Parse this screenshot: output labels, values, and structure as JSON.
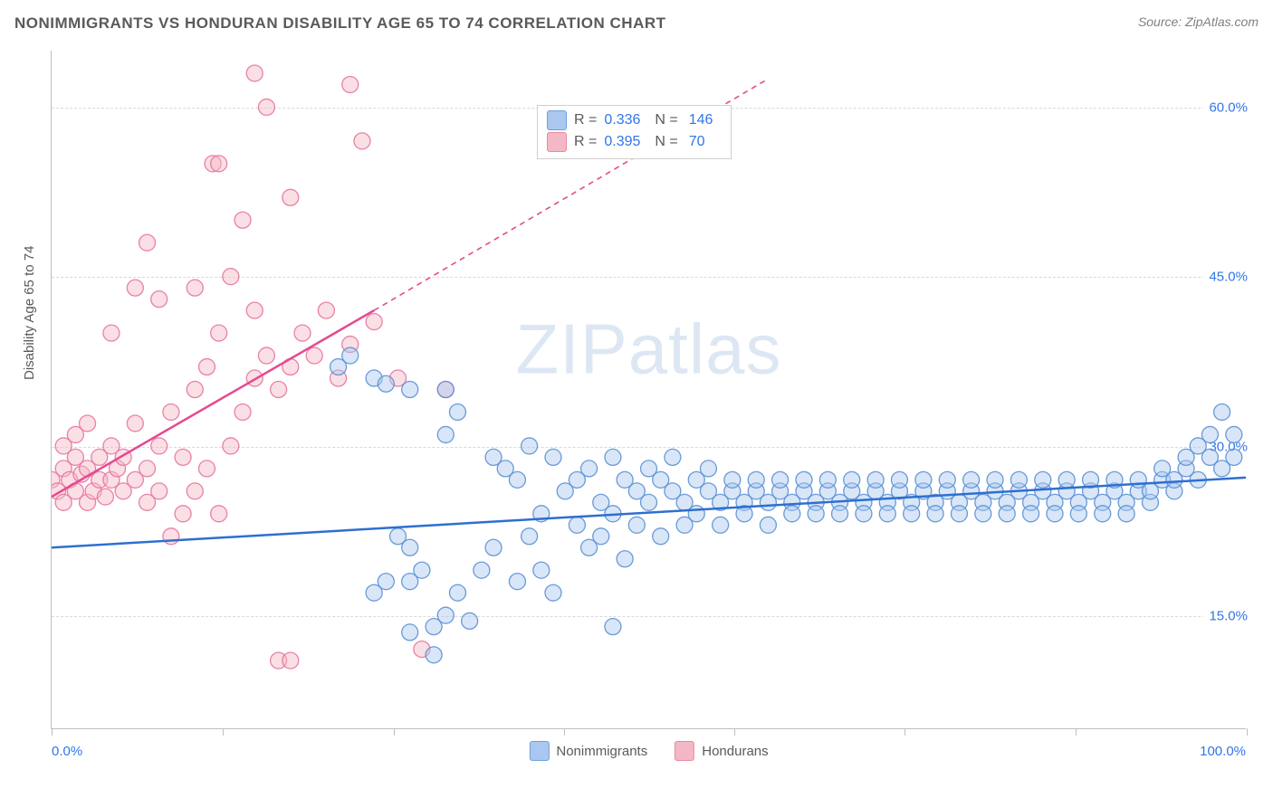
{
  "title": "NONIMMIGRANTS VS HONDURAN DISABILITY AGE 65 TO 74 CORRELATION CHART",
  "source": "Source: ZipAtlas.com",
  "y_axis_label": "Disability Age 65 to 74",
  "watermark": "ZIPatlas",
  "chart": {
    "type": "scatter",
    "background_color": "#ffffff",
    "grid_color": "#d9d9d9",
    "axis_color": "#bfbfbf",
    "xlim": [
      0,
      100
    ],
    "ylim": [
      5,
      65
    ],
    "x_tick_positions": [
      0,
      14.3,
      28.6,
      42.9,
      57.1,
      71.4,
      85.7,
      100
    ],
    "x_min_label": "0.0%",
    "x_max_label": "100.0%",
    "y_ticks": [
      {
        "value": 15,
        "label": "15.0%"
      },
      {
        "value": 30,
        "label": "30.0%"
      },
      {
        "value": 45,
        "label": "45.0%"
      },
      {
        "value": 60,
        "label": "60.0%"
      }
    ],
    "marker_radius": 9,
    "marker_opacity": 0.45,
    "trend_line_width": 2.5
  },
  "legend_top": {
    "rows": [
      {
        "swatch_fill": "#a9c7ef",
        "swatch_border": "#6fa0dc",
        "r_label": "R =",
        "r_value": "0.336",
        "n_label": "N =",
        "n_value": "146"
      },
      {
        "swatch_fill": "#f4b7c6",
        "swatch_border": "#e98aa2",
        "r_label": "R =",
        "r_value": "0.395",
        "n_label": "N =",
        "n_value": "70"
      }
    ]
  },
  "legend_bottom": {
    "items": [
      {
        "swatch_fill": "#a9c7ef",
        "swatch_border": "#6fa0dc",
        "label": "Nonimmigrants"
      },
      {
        "swatch_fill": "#f4b7c6",
        "swatch_border": "#e98aa2",
        "label": "Hondurans"
      }
    ]
  },
  "series": {
    "blue": {
      "fill": "#a9c7ef",
      "stroke": "#5b90d4",
      "trend_color": "#2e6fd0",
      "trend": {
        "x1": 0,
        "y1": 21.0,
        "x2": 100,
        "y2": 27.2
      },
      "points": [
        [
          24,
          37
        ],
        [
          25,
          38
        ],
        [
          27,
          36
        ],
        [
          28,
          35.5
        ],
        [
          33,
          31
        ],
        [
          33,
          35
        ],
        [
          34,
          33
        ],
        [
          30,
          35
        ],
        [
          29,
          22
        ],
        [
          30,
          21
        ],
        [
          30,
          18
        ],
        [
          31,
          19
        ],
        [
          32,
          14
        ],
        [
          33,
          15
        ],
        [
          34,
          17
        ],
        [
          35,
          14.5
        ],
        [
          36,
          19
        ],
        [
          37,
          21
        ],
        [
          27,
          17
        ],
        [
          28,
          18
        ],
        [
          30,
          13.5
        ],
        [
          37,
          29
        ],
        [
          38,
          28
        ],
        [
          39,
          18
        ],
        [
          39,
          27
        ],
        [
          40,
          22
        ],
        [
          40,
          30
        ],
        [
          41,
          19
        ],
        [
          41,
          24
        ],
        [
          42,
          17
        ],
        [
          42,
          29
        ],
        [
          43,
          26
        ],
        [
          44,
          27
        ],
        [
          44,
          23
        ],
        [
          45,
          21
        ],
        [
          45,
          28
        ],
        [
          46,
          22
        ],
        [
          46,
          25
        ],
        [
          47,
          29
        ],
        [
          47,
          24
        ],
        [
          48,
          27
        ],
        [
          48,
          20
        ],
        [
          49,
          26
        ],
        [
          49,
          23
        ],
        [
          50,
          25
        ],
        [
          50,
          28
        ],
        [
          51,
          27
        ],
        [
          51,
          22
        ],
        [
          52,
          26
        ],
        [
          52,
          29
        ],
        [
          53,
          25
        ],
        [
          53,
          23
        ],
        [
          54,
          27
        ],
        [
          54,
          24
        ],
        [
          55,
          26
        ],
        [
          55,
          28
        ],
        [
          56,
          25
        ],
        [
          56,
          23
        ],
        [
          57,
          26
        ],
        [
          57,
          27
        ],
        [
          58,
          25
        ],
        [
          58,
          24
        ],
        [
          59,
          26
        ],
        [
          59,
          27
        ],
        [
          60,
          25
        ],
        [
          60,
          23
        ],
        [
          61,
          26
        ],
        [
          61,
          27
        ],
        [
          62,
          25
        ],
        [
          62,
          24
        ],
        [
          63,
          26
        ],
        [
          63,
          27
        ],
        [
          64,
          25
        ],
        [
          64,
          24
        ],
        [
          65,
          26
        ],
        [
          65,
          27
        ],
        [
          66,
          25
        ],
        [
          66,
          24
        ],
        [
          67,
          26
        ],
        [
          67,
          27
        ],
        [
          68,
          25
        ],
        [
          68,
          24
        ],
        [
          69,
          26
        ],
        [
          69,
          27
        ],
        [
          70,
          25
        ],
        [
          70,
          24
        ],
        [
          71,
          26
        ],
        [
          71,
          27
        ],
        [
          72,
          25
        ],
        [
          72,
          24
        ],
        [
          73,
          26
        ],
        [
          73,
          27
        ],
        [
          74,
          25
        ],
        [
          74,
          24
        ],
        [
          75,
          26
        ],
        [
          75,
          27
        ],
        [
          76,
          25
        ],
        [
          76,
          24
        ],
        [
          77,
          26
        ],
        [
          77,
          27
        ],
        [
          78,
          25
        ],
        [
          78,
          24
        ],
        [
          79,
          26
        ],
        [
          79,
          27
        ],
        [
          80,
          25
        ],
        [
          80,
          24
        ],
        [
          81,
          26
        ],
        [
          81,
          27
        ],
        [
          82,
          25
        ],
        [
          82,
          24
        ],
        [
          83,
          26
        ],
        [
          83,
          27
        ],
        [
          84,
          25
        ],
        [
          84,
          24
        ],
        [
          85,
          26
        ],
        [
          85,
          27
        ],
        [
          86,
          25
        ],
        [
          86,
          24
        ],
        [
          87,
          26
        ],
        [
          87,
          27
        ],
        [
          88,
          25
        ],
        [
          88,
          24
        ],
        [
          89,
          26
        ],
        [
          89,
          27
        ],
        [
          90,
          25
        ],
        [
          90,
          24
        ],
        [
          91,
          26
        ],
        [
          91,
          27
        ],
        [
          92,
          25
        ],
        [
          92,
          26
        ],
        [
          93,
          27
        ],
        [
          93,
          28
        ],
        [
          94,
          26
        ],
        [
          94,
          27
        ],
        [
          95,
          28
        ],
        [
          95,
          29
        ],
        [
          96,
          27
        ],
        [
          96,
          30
        ],
        [
          97,
          29
        ],
        [
          97,
          31
        ],
        [
          98,
          28
        ],
        [
          98,
          33
        ],
        [
          99,
          29
        ],
        [
          99,
          31
        ],
        [
          32,
          11.5
        ],
        [
          47,
          14
        ]
      ]
    },
    "pink": {
      "fill": "#f4b7c6",
      "stroke": "#e774a0",
      "trend_color": "#e64990",
      "trend_solid": {
        "x1": 0,
        "y1": 25.5,
        "x2": 27,
        "y2": 42.0
      },
      "trend_dashed": {
        "x1": 27,
        "y1": 42.0,
        "x2": 60,
        "y2": 62.5
      },
      "points": [
        [
          0,
          27
        ],
        [
          0.5,
          26
        ],
        [
          1,
          25
        ],
        [
          1,
          28
        ],
        [
          1.5,
          27
        ],
        [
          2,
          29
        ],
        [
          2,
          26
        ],
        [
          2.5,
          27.5
        ],
        [
          3,
          28
        ],
        [
          3,
          25
        ],
        [
          3.5,
          26
        ],
        [
          4,
          27
        ],
        [
          4,
          29
        ],
        [
          4.5,
          25.5
        ],
        [
          5,
          27
        ],
        [
          5,
          30
        ],
        [
          5.5,
          28
        ],
        [
          6,
          26
        ],
        [
          6,
          29
        ],
        [
          7,
          27
        ],
        [
          7,
          32
        ],
        [
          8,
          28
        ],
        [
          8,
          25
        ],
        [
          9,
          30
        ],
        [
          9,
          26
        ],
        [
          10,
          33
        ],
        [
          10,
          22
        ],
        [
          11,
          29
        ],
        [
          11,
          24
        ],
        [
          12,
          35
        ],
        [
          12,
          26
        ],
        [
          13,
          37
        ],
        [
          13,
          28
        ],
        [
          13.5,
          55
        ],
        [
          14,
          24
        ],
        [
          14,
          40
        ],
        [
          15,
          30
        ],
        [
          15,
          45
        ],
        [
          16,
          33
        ],
        [
          16,
          50
        ],
        [
          17,
          36
        ],
        [
          17,
          42
        ],
        [
          18,
          38
        ],
        [
          18,
          60
        ],
        [
          19,
          35
        ],
        [
          19,
          11
        ],
        [
          20,
          37
        ],
        [
          20,
          52
        ],
        [
          21,
          40
        ],
        [
          22,
          38
        ],
        [
          23,
          42
        ],
        [
          24,
          36
        ],
        [
          25,
          39
        ],
        [
          26,
          57
        ],
        [
          27,
          41
        ],
        [
          25,
          62
        ],
        [
          17,
          63
        ],
        [
          14,
          55
        ],
        [
          9,
          43
        ],
        [
          8,
          48
        ],
        [
          12,
          44
        ],
        [
          5,
          40
        ],
        [
          7,
          44
        ],
        [
          3,
          32
        ],
        [
          2,
          31
        ],
        [
          1,
          30
        ],
        [
          20,
          11
        ],
        [
          31,
          12
        ],
        [
          29,
          36
        ],
        [
          33,
          35
        ]
      ]
    }
  }
}
